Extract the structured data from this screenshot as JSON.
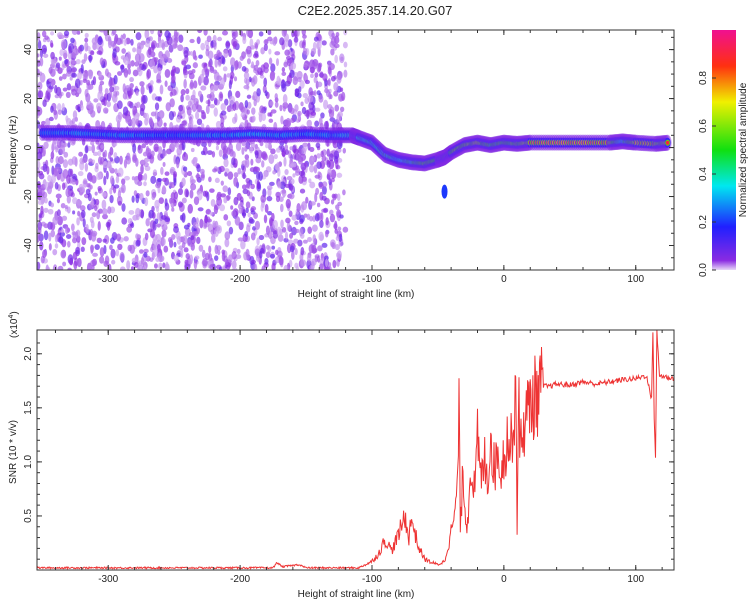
{
  "title": "C2E2.2025.357.14.20.G07",
  "chart_data": [
    {
      "type": "heatmap",
      "xlabel": "Height of straight line (km)",
      "ylabel": "Frequency (Hz)",
      "xlim": [
        -354,
        129
      ],
      "ylim": [
        -50,
        48
      ],
      "xticks": [
        -300,
        -200,
        -100,
        0,
        100
      ],
      "xtick_labels": [
        "-300",
        "-200",
        "-100",
        "0",
        "100"
      ],
      "yticks": [
        40,
        20,
        0,
        -20,
        -40
      ],
      "ytick_labels": [
        "40",
        "20",
        "0",
        "-20",
        "-40"
      ],
      "colorbar": {
        "label": "Normalized spectral amplitude",
        "range": [
          0,
          1
        ],
        "ticks": [
          0.0,
          0.2,
          0.4,
          0.6,
          0.8
        ],
        "tick_labels": [
          "0.0",
          "0.2",
          "0.4",
          "0.6",
          "0.8"
        ]
      },
      "noise_region_x": [
        -354,
        -120
      ],
      "ridge": {
        "x": [
          -350,
          -330,
          -310,
          -290,
          -270,
          -250,
          -230,
          -210,
          -190,
          -170,
          -150,
          -130,
          -115,
          -110,
          -100,
          -90,
          -80,
          -70,
          -60,
          -50,
          -45,
          -40,
          -30,
          -20,
          -10,
          0,
          10,
          20,
          40,
          60,
          80,
          90,
          100,
          115,
          125
        ],
        "freq": [
          6,
          6,
          5.5,
          5,
          5,
          5,
          5,
          5,
          5.5,
          5,
          5.5,
          5,
          5,
          4,
          2,
          -3,
          -5,
          -6,
          -6.5,
          -5,
          -4,
          -2,
          1,
          2,
          1,
          2,
          1.5,
          2,
          2,
          2,
          2,
          2.5,
          2,
          1.5,
          2
        ],
        "amp": [
          0.25,
          0.3,
          0.3,
          0.3,
          0.3,
          0.25,
          0.3,
          0.3,
          0.35,
          0.3,
          0.3,
          0.3,
          0.4,
          0.55,
          0.5,
          0.6,
          0.5,
          0.6,
          0.8,
          0.7,
          0.75,
          0.8,
          0.85,
          0.9,
          0.7,
          0.75,
          0.8,
          0.9,
          0.95,
          0.95,
          0.9,
          0.5,
          0.95,
          0.9,
          0.9
        ]
      },
      "secondary_blob": {
        "x": -45,
        "freq": -18,
        "amp": 0.2
      }
    },
    {
      "type": "line",
      "xlabel": "Height of straight line (km)",
      "ylabel": "SNR (10 * v/v)",
      "y_multiplier": "(x10",
      "y_multiplier_exp": "4",
      "xlim": [
        -354,
        129
      ],
      "ylim": [
        0,
        2.22
      ],
      "xticks": [
        -300,
        -200,
        -100,
        0,
        100
      ],
      "xtick_labels": [
        "-300",
        "-200",
        "-100",
        "0",
        "100"
      ],
      "yticks": [
        0.5,
        1.0,
        1.5,
        2.0
      ],
      "ytick_labels": [
        "0.5",
        "1.0",
        "1.5",
        "2.0"
      ],
      "color": "#ee3333",
      "series": {
        "x": [
          -354,
          -300,
          -250,
          -200,
          -175,
          -172,
          -168,
          -155,
          -150,
          -110,
          -105,
          -100,
          -95,
          -90,
          -85,
          -80,
          -75,
          -72,
          -70,
          -65,
          -60,
          -55,
          -50,
          -45,
          -40,
          -36,
          -34,
          -33,
          -31,
          -28,
          -25,
          -22,
          -20,
          -17,
          -15,
          -12,
          -10,
          -7,
          -5,
          -2,
          0,
          3,
          5,
          8,
          9,
          10,
          11,
          12,
          15,
          18,
          20,
          25,
          30,
          35,
          40,
          50,
          60,
          70,
          80,
          90,
          100,
          108,
          112,
          113,
          114,
          115,
          116,
          118,
          125,
          129
        ],
        "y": [
          0.02,
          0.02,
          0.02,
          0.02,
          0.02,
          0.07,
          0.03,
          0.05,
          0.02,
          0.02,
          0.05,
          0.08,
          0.15,
          0.28,
          0.18,
          0.32,
          0.5,
          0.3,
          0.48,
          0.22,
          0.1,
          0.07,
          0.05,
          0.08,
          0.35,
          0.6,
          1.43,
          0.4,
          0.9,
          0.35,
          1.0,
          0.7,
          1.2,
          0.8,
          1.05,
          0.85,
          1.25,
          0.9,
          1.1,
          0.95,
          1.05,
          1.25,
          1.1,
          1.5,
          1.93,
          0.3,
          1.8,
          1.1,
          1.35,
          1.45,
          1.55,
          1.62,
          1.7,
          1.7,
          1.72,
          1.71,
          1.74,
          1.72,
          1.74,
          1.76,
          1.77,
          1.8,
          1.58,
          2.22,
          1.4,
          1.05,
          2.2,
          1.8,
          1.78,
          1.77
        ]
      }
    }
  ]
}
